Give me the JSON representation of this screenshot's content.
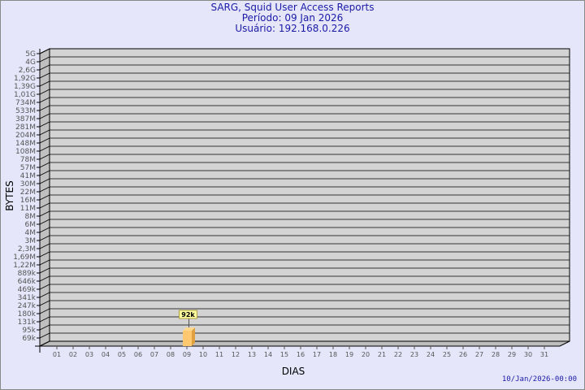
{
  "chart_data": {
    "type": "bar",
    "title": "SARG, Squid User Access Reports",
    "subtitle_lines": [
      "Período: 09 Jan 2026",
      "Usuário: 192.168.0.226"
    ],
    "xlabel": "DIAS",
    "ylabel": "BYTES",
    "y_tick_labels": [
      "5G",
      "4G",
      "2,6G",
      "1,92G",
      "1,39G",
      "1,01G",
      "734M",
      "533M",
      "387M",
      "281M",
      "204M",
      "148M",
      "108M",
      "78M",
      "57M",
      "41M",
      "30M",
      "22M",
      "16M",
      "11M",
      "8M",
      "6M",
      "4M",
      "3M",
      "2,3M",
      "1,69M",
      "1,22M",
      "889k",
      "646k",
      "469k",
      "341k",
      "247k",
      "180k",
      "131k",
      "95k",
      "69k"
    ],
    "categories": [
      "01",
      "02",
      "03",
      "04",
      "05",
      "06",
      "07",
      "08",
      "09",
      "10",
      "11",
      "12",
      "13",
      "14",
      "15",
      "16",
      "17",
      "18",
      "19",
      "20",
      "21",
      "22",
      "23",
      "24",
      "25",
      "26",
      "27",
      "28",
      "29",
      "30",
      "31"
    ],
    "series": [
      {
        "values": [
          0,
          0,
          0,
          0,
          0,
          0,
          0,
          0,
          92000,
          0,
          0,
          0,
          0,
          0,
          0,
          0,
          0,
          0,
          0,
          0,
          0,
          0,
          0,
          0,
          0,
          0,
          0,
          0,
          0,
          0,
          0
        ]
      }
    ],
    "data_labels": {
      "09": "92k"
    },
    "y_scale": "log",
    "grid": true,
    "colors": {
      "bar": "#ffc870",
      "bar_side": "#e0a040",
      "plot_bg": "#d3d3d3",
      "title": "#1a1aa8"
    }
  },
  "footer": {
    "timestamp": "10/Jan/2026-00:00"
  }
}
